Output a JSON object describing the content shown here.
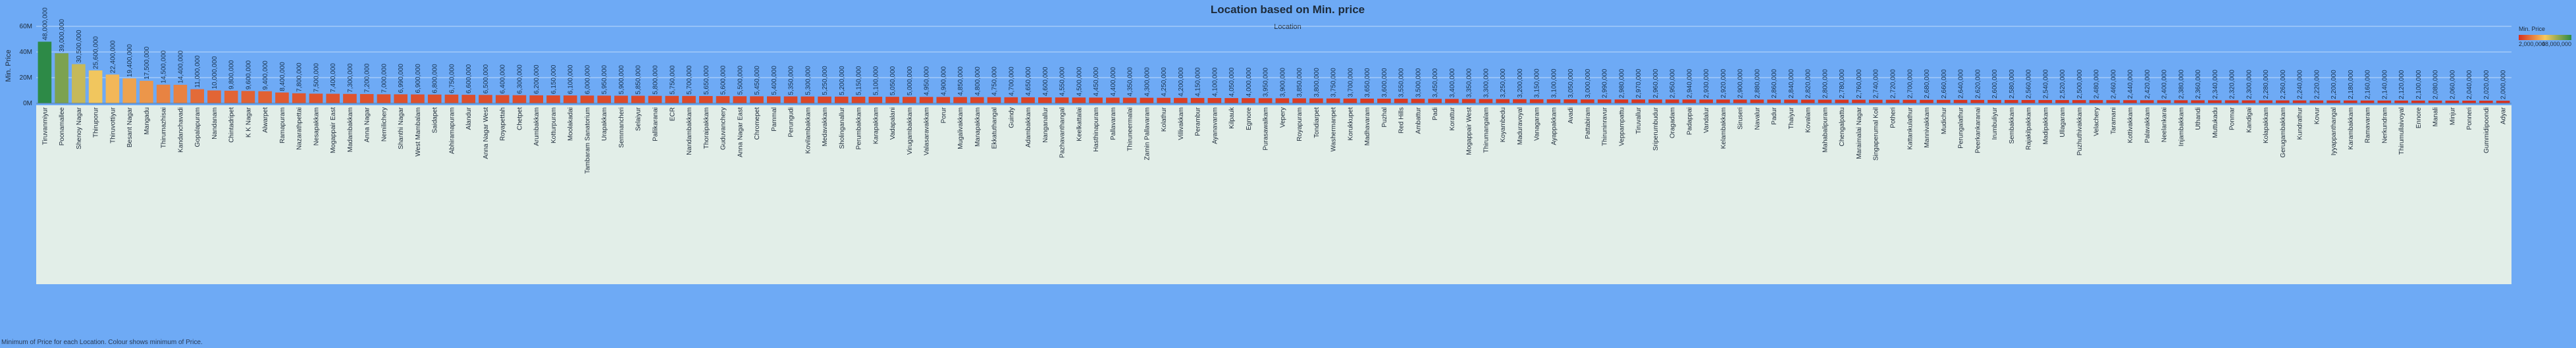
{
  "chart_data": {
    "type": "bar",
    "title": "Location based on Min. price",
    "subtitle": "Location",
    "y_label": "Min. Price",
    "caption": "Minimum of Price for each Location. Colour shows minimum of Price.",
    "legend": {
      "title": "Min. Price",
      "min": {
        "value": 2000000,
        "label": "2,000,000"
      },
      "max": {
        "value": 48000000,
        "label": "48,000,000"
      }
    },
    "colors": [
      "#d7301f",
      "#f6c85f",
      "#2d8a47"
    ],
    "grid": true,
    "ylim": [
      0,
      60000000
    ],
    "yticks": [
      {
        "value": 0,
        "label": "0M"
      },
      {
        "value": 20000000,
        "label": "20M"
      },
      {
        "value": 40000000,
        "label": "40M"
      },
      {
        "value": 60000000,
        "label": "60M"
      }
    ],
    "categories": [
      "Tiruvanmiyur",
      "Poonamallee",
      "Shenoy Nagar",
      "Thiruporur",
      "Thiruvottiyur",
      "Besant Nagar",
      "Mangadu",
      "Thirumazhisai",
      "Kandanchavadi",
      "Gopalapuram",
      "Nandanam",
      "Chintadripet",
      "K K Nagar",
      "Alwarpet",
      "Ramapuram",
      "Nazarathpettai",
      "Nesapakkam",
      "Mogappair East",
      "Madambakkam",
      "Anna Nagar",
      "Nemilichery",
      "Shanthi Nagar",
      "West Mambalam",
      "Saidapet",
      "Abhiramapuram",
      "Alandur",
      "Anna Nagar West",
      "Royapettah",
      "Chetpet",
      "Arumbakkam",
      "Kotturpuram",
      "Moolakadai",
      "Tambaram Sanatorium",
      "Urapakkam",
      "Semmancheri",
      "Selaiyur",
      "Pallikaranai",
      "ECR",
      "Nandambakkam",
      "Thoraipakkam",
      "Guduvanchery",
      "Anna Nagar East",
      "Chromepet",
      "Pammal",
      "Perungudi",
      "Kovilambakkam",
      "Medavakkam",
      "Sholinganallur",
      "Perumbakkam",
      "Karapakkam",
      "Vadapalani",
      "Virugambakkam",
      "Valasaravakkam",
      "Porur",
      "Mugalivakkam",
      "Manapakkam",
      "Ekkatuthangal",
      "Guindy",
      "Adambakkam",
      "Nanganallur",
      "Pazhavanthangal",
      "Keelkattalai",
      "Hasthinapuram",
      "Pallavaram",
      "Thiruneermalai",
      "Zamin Pallavaram",
      "Kolathur",
      "Villivakkam",
      "Perambur",
      "Ayanavaram",
      "Kilpauk",
      "Egmore",
      "Purasawalkam",
      "Vepery",
      "Royapuram",
      "Tondiarpet",
      "Washermanpet",
      "Korukkupet",
      "Madhavaram",
      "Puzhal",
      "Red Hills",
      "Ambattur",
      "Padi",
      "Korattur",
      "Mogappair West",
      "Thirumangalam",
      "Koyambedu",
      "Maduravoyal",
      "Vanagaram",
      "Ayappakkam",
      "Avadi",
      "Pattabiram",
      "Thiruninravur",
      "Veppampattu",
      "Tiruvallur",
      "Sriperumbudur",
      "Oragadam",
      "Padappai",
      "Vandalur",
      "Kelambakkam",
      "Siruseri",
      "Navalur",
      "Padur",
      "Thaiyur",
      "Kovalam",
      "Mahabalipuram",
      "Chengalpattu",
      "Maraimalai Nagar",
      "Singaperumal Koil",
      "Potheri",
      "Kattankulathur",
      "Mannivakkam",
      "Mudichur",
      "Perungalathur",
      "Peerkankaranai",
      "Irumbuliyur",
      "Sembakkam",
      "Rajakilpakkam",
      "Madipakkam",
      "Ullagaram",
      "Puzhuthivakkam",
      "Velachery",
      "Taramani",
      "Kottivakkam",
      "Palavakkam",
      "Neelankarai",
      "Injambakkam",
      "Uthandi",
      "Muttukadu",
      "Ponmar",
      "Kandigai",
      "Kolapakkam",
      "Gerugambakkam",
      "Kundrathur",
      "Kovur",
      "Iyyappanthangal",
      "Karambakkam",
      "Ramavaram",
      "Nerkundram",
      "Thirumullaivoyal",
      "Ennore",
      "Manali",
      "Minjur",
      "Ponneri",
      "Gummidipoondi",
      "Adyar"
    ],
    "values": [
      48000000,
      39000000,
      30500000,
      25600000,
      22400000,
      19400000,
      17500000,
      14500000,
      14400000,
      11000000,
      10000000,
      9800000,
      9600000,
      9400000,
      8400000,
      7800000,
      7500000,
      7400000,
      7300000,
      7200000,
      7000000,
      6990000,
      6900000,
      6800000,
      6750000,
      6600000,
      6500000,
      6400000,
      6300000,
      6200000,
      6150000,
      6100000,
      6000000,
      5950000,
      5900000,
      5850000,
      5800000,
      5750000,
      5700000,
      5650000,
      5600000,
      5500000,
      5450000,
      5400000,
      5350000,
      5300000,
      5250000,
      5200000,
      5150000,
      5100000,
      5050000,
      5000000,
      4950000,
      4900000,
      4850000,
      4800000,
      4750000,
      4700000,
      4650000,
      4600000,
      4550000,
      4500000,
      4450000,
      4400000,
      4350000,
      4300000,
      4250000,
      4200000,
      4150000,
      4100000,
      4050000,
      4000000,
      3950000,
      3900000,
      3850000,
      3800000,
      3750000,
      3700000,
      3650000,
      3600000,
      3550000,
      3500000,
      3450000,
      3400000,
      3350000,
      3300000,
      3250000,
      3200000,
      3150000,
      3100000,
      3050000,
      3000000,
      2990000,
      2980000,
      2970000,
      2960000,
      2950000,
      2940000,
      2930000,
      2920000,
      2900000,
      2880000,
      2860000,
      2840000,
      2820000,
      2800000,
      2780000,
      2760000,
      2740000,
      2720000,
      2700000,
      2680000,
      2660000,
      2640000,
      2620000,
      2600000,
      2580000,
      2560000,
      2540000,
      2520000,
      2500000,
      2480000,
      2460000,
      2440000,
      2420000,
      2400000,
      2380000,
      2360000,
      2340000,
      2320000,
      2300000,
      2280000,
      2260000,
      2240000,
      2220000,
      2200000,
      2180000,
      2160000,
      2140000,
      2120000,
      2100000,
      2080000,
      2060000,
      2040000,
      2020000,
      2000000
    ],
    "value_labels": [
      "48,000,000",
      "39,000,000",
      "30,500,000",
      "25,600,000",
      "22,400,000",
      "19,400,000",
      "17,500,000",
      "14,500,000",
      "14,400,000",
      "11,000,000",
      "10,000,000",
      "9,800,000",
      "9,600,000",
      "9,400,000",
      "8,400,000",
      "7,800,000",
      "7,500,000",
      "7,400,000",
      "7,300,000",
      "7,200,000",
      "7,000,000",
      "6,990,000",
      "6,900,000",
      "6,800,000",
      "6,750,000",
      "6,600,000",
      "6,500,000",
      "6,400,000",
      "6,300,000",
      "6,200,000",
      "6,150,000",
      "6,100,000",
      "6,000,000",
      "5,950,000",
      "5,900,000",
      "5,850,000",
      "5,800,000",
      "5,750,000",
      "5,700,000",
      "5,650,000",
      "5,600,000",
      "5,500,000",
      "5,450,000",
      "5,400,000",
      "5,350,000",
      "5,300,000",
      "5,250,000",
      "5,200,000",
      "5,150,000",
      "5,100,000",
      "5,050,000",
      "5,000,000",
      "4,950,000",
      "4,900,000",
      "4,850,000",
      "4,800,000",
      "4,750,000",
      "4,700,000",
      "4,650,000",
      "4,600,000",
      "4,550,000",
      "4,500,000",
      "4,450,000",
      "4,400,000",
      "4,350,000",
      "4,300,000",
      "4,250,000",
      "4,200,000",
      "4,150,000",
      "4,100,000",
      "4,050,000",
      "4,000,000",
      "3,950,000",
      "3,900,000",
      "3,850,000",
      "3,800,000",
      "3,750,000",
      "3,700,000",
      "3,650,000",
      "3,600,000",
      "3,550,000",
      "3,500,000",
      "3,450,000",
      "3,400,000",
      "3,350,000",
      "3,300,000",
      "3,250,000",
      "3,200,000",
      "3,150,000",
      "3,100,000",
      "3,050,000",
      "3,000,000",
      "2,990,000",
      "2,980,000",
      "2,970,000",
      "2,960,000",
      "2,950,000",
      "2,940,000",
      "2,930,000",
      "2,920,000",
      "2,900,000",
      "2,880,000",
      "2,860,000",
      "2,840,000",
      "2,820,000",
      "2,800,000",
      "2,780,000",
      "2,760,000",
      "2,740,000",
      "2,720,000",
      "2,700,000",
      "2,680,000",
      "2,660,000",
      "2,640,000",
      "2,620,000",
      "2,600,000",
      "2,580,000",
      "2,560,000",
      "2,540,000",
      "2,520,000",
      "2,500,000",
      "2,480,000",
      "2,460,000",
      "2,440,000",
      "2,420,000",
      "2,400,000",
      "2,380,000",
      "2,360,000",
      "2,340,000",
      "2,320,000",
      "2,300,000",
      "2,280,000",
      "2,260,000",
      "2,240,000",
      "2,220,000",
      "2,200,000",
      "2,180,000",
      "2,160,000",
      "2,140,000",
      "2,120,000",
      "2,100,000",
      "2,080,000",
      "2,060,000",
      "2,040,000",
      "2,020,000",
      "2,000,000"
    ]
  }
}
